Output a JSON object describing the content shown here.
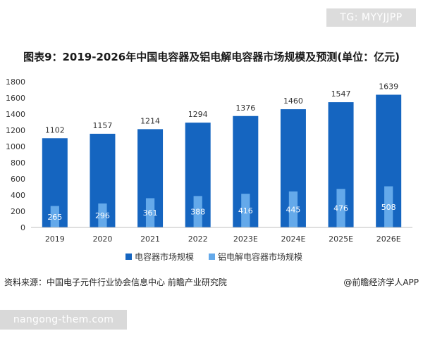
{
  "corner_tag": "TG: MYYJJPP",
  "source": "资料来源：中国电子元件行业协会信息中心 前瞻产业研究院",
  "credit": "@前瞻经济学人APP",
  "site_tag": "nangong-them.com",
  "colors": {
    "series1": "#1565c0",
    "series2": "#64a9ea",
    "axis": "#bfbfbf"
  },
  "chart_data": {
    "type": "bar",
    "title": "图表9：2019-2026年中国电容器及铝电解电容器市场规模及预测(单位：亿元)",
    "categories": [
      "2019",
      "2020",
      "2021",
      "2022",
      "2023E",
      "2024E",
      "2025E",
      "2026E"
    ],
    "series": [
      {
        "name": "电容器市场规模",
        "values": [
          1102,
          1157,
          1214,
          1294,
          1376,
          1460,
          1547,
          1639
        ]
      },
      {
        "name": "铝电解电容器市场规模",
        "values": [
          265,
          296,
          361,
          388,
          416,
          445,
          476,
          508
        ]
      }
    ],
    "ylim": [
      0,
      1800
    ],
    "yticks": [
      "0",
      "200",
      "400",
      "600",
      "800",
      "1000",
      "1200",
      "1400",
      "1600",
      "1800"
    ],
    "legend": "bottom",
    "grid": false
  }
}
